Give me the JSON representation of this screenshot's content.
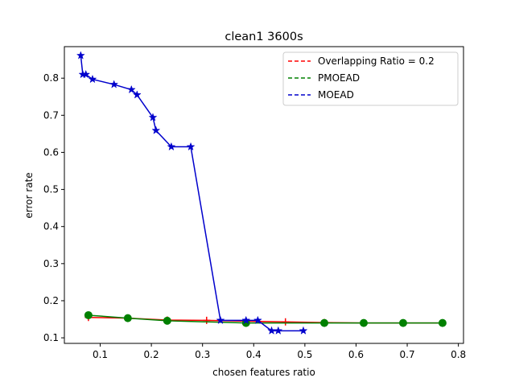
{
  "chart_data": {
    "type": "line",
    "title": "clean1 3600s",
    "xlabel": "chosen features ratio",
    "ylabel": "error rate",
    "xlim": [
      0.03,
      0.81
    ],
    "ylim": [
      0.085,
      0.885
    ],
    "xticks": [
      0.1,
      0.2,
      0.3,
      0.4,
      0.5,
      0.6,
      0.7,
      0.8
    ],
    "yticks": [
      0.1,
      0.2,
      0.3,
      0.4,
      0.5,
      0.6,
      0.7,
      0.8
    ],
    "xtick_labels": [
      "0.1",
      "0.2",
      "0.3",
      "0.4",
      "0.5",
      "0.6",
      "0.7",
      "0.8"
    ],
    "ytick_labels": [
      "0.1",
      "0.2",
      "0.3",
      "0.4",
      "0.5",
      "0.6",
      "0.7",
      "0.8"
    ],
    "grid": false,
    "legend_position": "top-right",
    "series": [
      {
        "name": "Overlapping Ratio = 0.2",
        "color": "#ff0000",
        "marker": "plus",
        "x": [
          0.077,
          0.154,
          0.231,
          0.308,
          0.385,
          0.462,
          0.538,
          0.615,
          0.692,
          0.769
        ],
        "y": [
          0.155,
          0.153,
          0.148,
          0.147,
          0.145,
          0.143,
          0.141,
          0.14,
          0.14,
          0.14
        ]
      },
      {
        "name": "PMOEAD",
        "color": "#008000",
        "marker": "circle",
        "x": [
          0.077,
          0.154,
          0.231,
          0.385,
          0.538,
          0.615,
          0.692,
          0.769
        ],
        "y": [
          0.161,
          0.153,
          0.146,
          0.14,
          0.14,
          0.14,
          0.14,
          0.14
        ]
      },
      {
        "name": "MOEAD",
        "color": "#0000cc",
        "marker": "star",
        "x": [
          0.062,
          0.066,
          0.072,
          0.085,
          0.127,
          0.161,
          0.172,
          0.203,
          0.209,
          0.239,
          0.277,
          0.335,
          0.385,
          0.408,
          0.435,
          0.448,
          0.497
        ],
        "y": [
          0.861,
          0.81,
          0.81,
          0.797,
          0.783,
          0.769,
          0.755,
          0.694,
          0.659,
          0.615,
          0.615,
          0.147,
          0.147,
          0.147,
          0.119,
          0.119,
          0.119
        ]
      }
    ]
  }
}
